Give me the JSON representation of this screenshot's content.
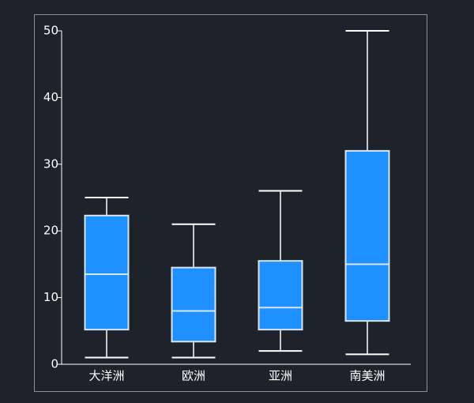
{
  "chart_data": {
    "type": "box",
    "categories": [
      "大洋洲",
      "欧洲",
      "亚洲",
      "南美洲"
    ],
    "min": [
      1,
      1,
      2,
      1.5
    ],
    "q1": [
      5.2,
      3.4,
      5.2,
      6.5
    ],
    "median": [
      13.5,
      8,
      8.5,
      15
    ],
    "q3": [
      22.3,
      14.5,
      15.5,
      32
    ],
    "max": [
      25,
      21,
      26,
      50
    ],
    "color": "#1e90ff",
    "ylim": [
      0,
      50
    ],
    "yticks": [
      0,
      10,
      20,
      30,
      40,
      50
    ],
    "grid": false
  }
}
